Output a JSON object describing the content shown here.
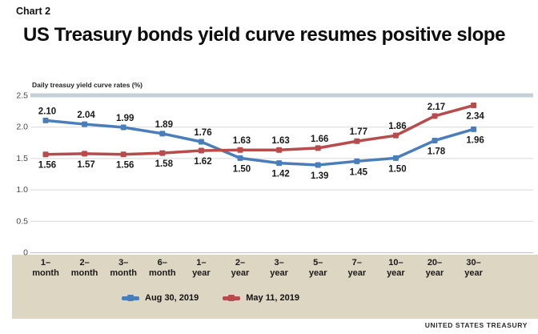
{
  "header": {
    "kicker": "Chart 2",
    "title": "US Treasury bonds yield curve resumes positive slope"
  },
  "chart_data": {
    "type": "line",
    "title": "US Treasury bonds yield curve resumes positive slope",
    "axis_title": "Daily treasuy yield curve rates (%)",
    "categories": [
      "1–month",
      "2–month",
      "3–month",
      "6–month",
      "1–year",
      "2–year",
      "3–year",
      "5–year",
      "7–year",
      "10–year",
      "20–year",
      "30–year"
    ],
    "y_ticks": [
      0,
      0.5,
      1.0,
      1.5,
      2.0,
      2.5
    ],
    "y_tick_labels": [
      "0",
      "0.5",
      "1.0",
      "1.5",
      "2.0",
      "2.5"
    ],
    "ylim": [
      0,
      2.5
    ],
    "grid": true,
    "legend_position": "bottom",
    "series": [
      {
        "name": "Aug 30, 2019",
        "color": "#4a7eba",
        "values": [
          2.1,
          2.04,
          1.99,
          1.89,
          1.76,
          1.5,
          1.42,
          1.39,
          1.45,
          1.5,
          1.78,
          1.96
        ],
        "label_positions": [
          "above",
          "above",
          "above",
          "above",
          "above",
          "below",
          "below",
          "below",
          "below",
          "below",
          "below",
          "below"
        ]
      },
      {
        "name": "May 11, 2019",
        "color": "#b84b4b",
        "values": [
          1.56,
          1.57,
          1.56,
          1.58,
          1.62,
          1.63,
          1.63,
          1.66,
          1.77,
          1.86,
          2.17,
          2.34
        ],
        "label_positions": [
          "below",
          "below",
          "below",
          "below",
          "below",
          "above",
          "above",
          "above",
          "above",
          "above",
          "above",
          "below"
        ]
      }
    ]
  },
  "footer": {
    "attribution": "UNITED STATES TREASURY"
  },
  "colors": {
    "top_rule": "#c5cfd6",
    "grid": "#d9d9d9",
    "zero_line": "#c2c2c2",
    "tick_text": "#4a4a4a",
    "label_text": "#1a1a1a",
    "strip": "#ddd6c3"
  }
}
